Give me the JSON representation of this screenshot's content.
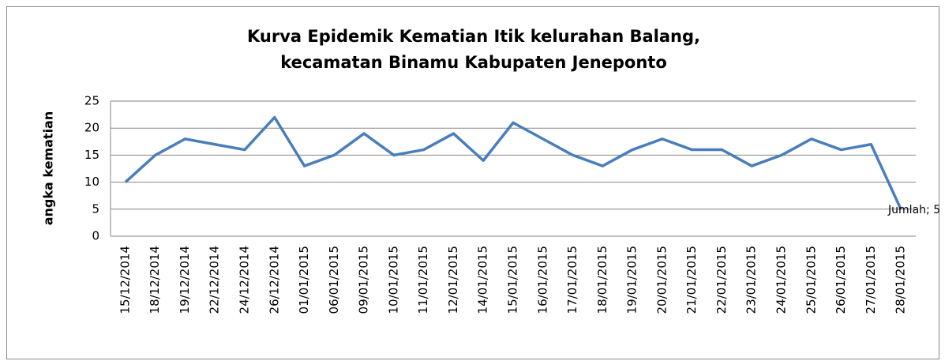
{
  "chart_data": {
    "type": "line",
    "title": [
      "Kurva Epidemik Kematian Itik kelurahan Balang,",
      "kecamatan Binamu Kabupaten Jeneponto"
    ],
    "y_label": "angka kematian",
    "categories": [
      "15/12/2014",
      "18/12/2014",
      "19/12/2014",
      "22/12/2014",
      "24/12/2014",
      "26/12/2014",
      "01/01/2015",
      "06/01/2015",
      "09/01/2015",
      "10/01/2015",
      "11/01/2015",
      "12/01/2015",
      "14/01/2015",
      "15/01/2015",
      "16/01/2015",
      "17/01/2015",
      "18/01/2015",
      "19/01/2015",
      "20/01/2015",
      "21/01/2015",
      "22/01/2015",
      "23/01/2015",
      "24/01/2015",
      "25/01/2015",
      "26/01/2015",
      "27/01/2015",
      "28/01/2015"
    ],
    "values": [
      10,
      15,
      18,
      17,
      16,
      22,
      13,
      15,
      19,
      15,
      16,
      19,
      14,
      21,
      18,
      15,
      13,
      16,
      18,
      16,
      16,
      13,
      15,
      18,
      16,
      17,
      5
    ],
    "value_labels": [
      null,
      null,
      null,
      null,
      null,
      null,
      null,
      null,
      null,
      null,
      null,
      null,
      null,
      null,
      null,
      null,
      null,
      null,
      null,
      null,
      null,
      null,
      null,
      null,
      null,
      null,
      "Jumlah; 5"
    ],
    "color": "#4a7ebb",
    "ylim": [
      0,
      25
    ],
    "yticks": [
      0,
      5,
      10,
      15,
      20,
      25
    ],
    "grid": true
  }
}
